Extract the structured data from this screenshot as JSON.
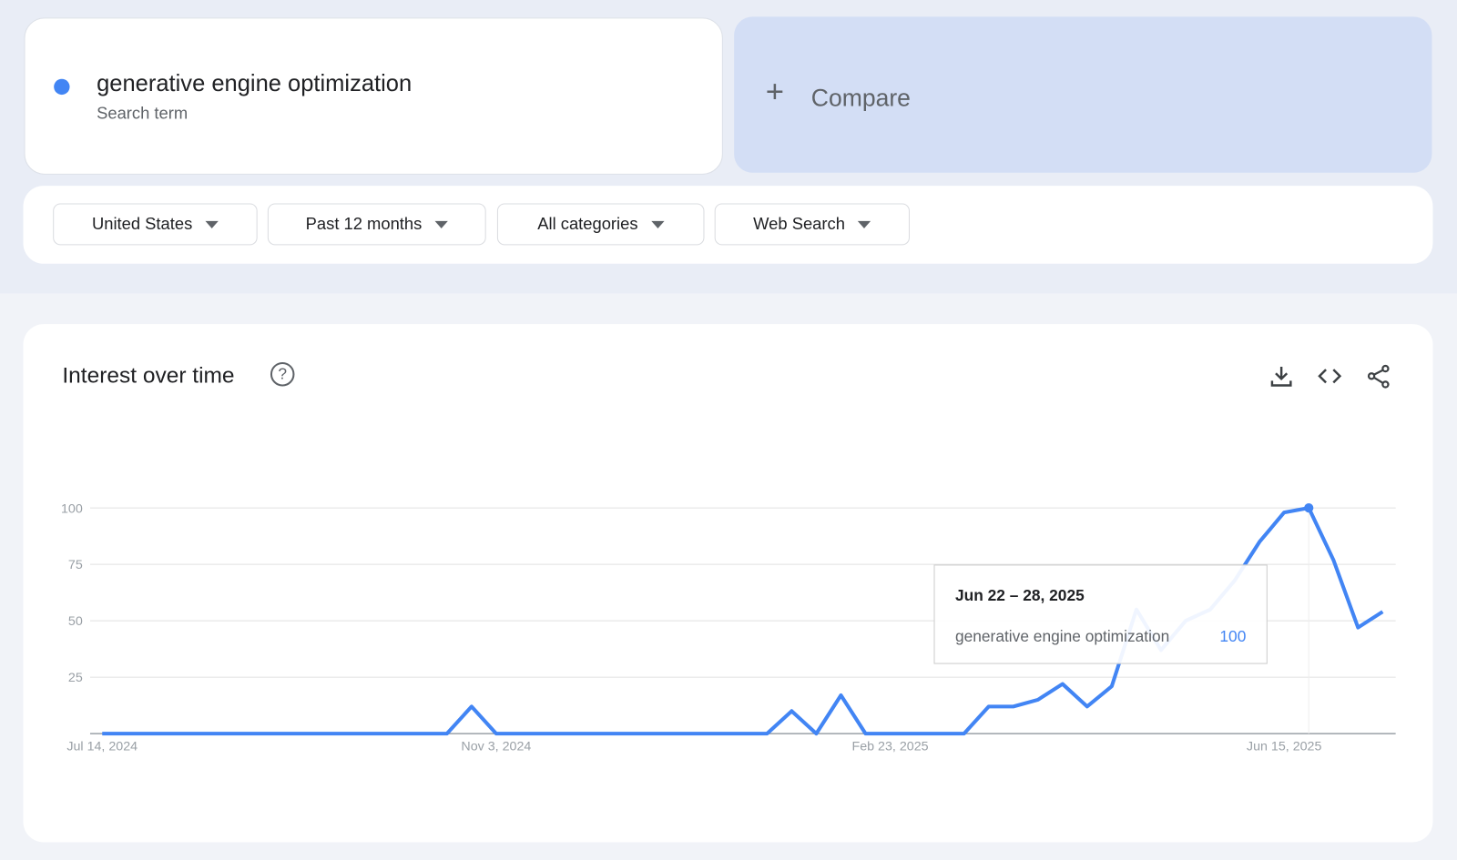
{
  "search": {
    "term": "generative engine optimization",
    "subtitle": "Search term",
    "color": "#4285f4"
  },
  "compare": {
    "label": "Compare"
  },
  "filters": [
    {
      "label": "United States"
    },
    {
      "label": "Past 12 months"
    },
    {
      "label": "All categories"
    },
    {
      "label": "Web Search"
    }
  ],
  "chart_card": {
    "title": "Interest over time",
    "icons": [
      "download-icon",
      "embed-code-icon",
      "share-icon"
    ]
  },
  "tooltip": {
    "date": "Jun 22 – 28, 2025",
    "term": "generative engine optimization",
    "value": "100"
  },
  "chart_data": {
    "type": "line",
    "ylim": [
      0,
      100
    ],
    "yticks": [
      "25",
      "50",
      "75",
      "100"
    ],
    "xtick_labels": [
      "Jul 14, 2024",
      "Nov 3, 2024",
      "Feb 23, 2025",
      "Jun 15, 2025"
    ],
    "xtick_index": [
      0,
      16,
      32,
      48
    ],
    "x_start": "Jul 14, 2024",
    "x_step": "weekly",
    "grid": true,
    "series": [
      {
        "name": "generative engine optimization",
        "color": "#4285f4",
        "values": [
          0,
          0,
          0,
          0,
          0,
          0,
          0,
          0,
          0,
          0,
          0,
          0,
          0,
          0,
          0,
          12,
          0,
          0,
          0,
          0,
          0,
          0,
          0,
          0,
          0,
          0,
          0,
          0,
          10,
          0,
          17,
          0,
          0,
          0,
          0,
          0,
          12,
          12,
          15,
          22,
          12,
          21,
          55,
          37,
          50,
          55,
          68,
          85,
          98,
          100,
          77,
          47,
          54
        ]
      }
    ],
    "highlight_index": 49
  }
}
